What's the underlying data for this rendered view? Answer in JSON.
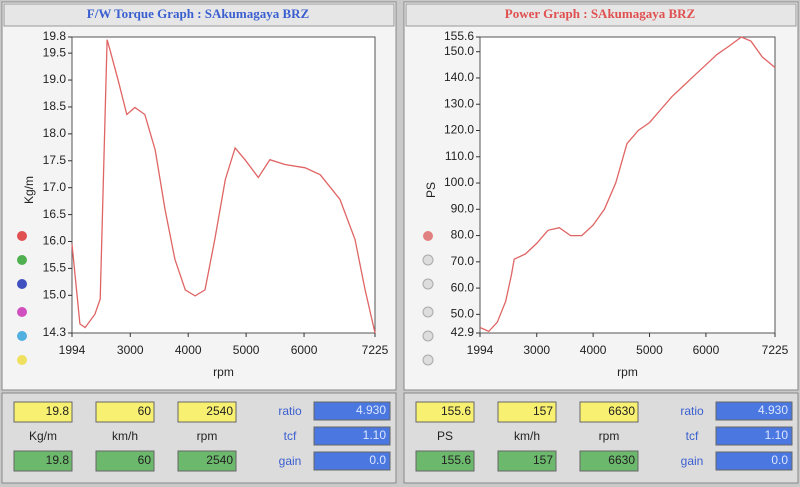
{
  "chart_data": [
    {
      "type": "line",
      "title": "F/W Torque Graph : SAkumagaya BRZ",
      "title_color": "#3a5fd0",
      "xlabel": "rpm",
      "ylabel": "Kg/m",
      "color": "#e06464",
      "x": [
        1994,
        2130,
        2220,
        2390,
        2480,
        2600,
        2650,
        2790,
        2940,
        3080,
        3250,
        3430,
        3600,
        3770,
        3950,
        4120,
        4290,
        4460,
        4640,
        4810,
        4980,
        5210,
        5410,
        5670,
        6020,
        6280,
        6620,
        6880,
        7050,
        7225
      ],
      "values": [
        15.95,
        14.47,
        14.4,
        14.65,
        14.93,
        19.75,
        19.56,
        19.0,
        18.36,
        18.49,
        18.36,
        17.7,
        16.6,
        15.67,
        15.1,
        14.99,
        15.1,
        16.04,
        17.15,
        17.74,
        17.52,
        17.19,
        17.52,
        17.43,
        17.37,
        17.24,
        16.78,
        16.04,
        15.12,
        14.3
      ],
      "xlim": [
        1994,
        7225
      ],
      "xticks": [
        1994,
        3000,
        4000,
        5000,
        6000,
        7225
      ],
      "ylim": [
        14.3,
        19.8
      ],
      "yticks": [
        14.3,
        {
          "value": 15,
          "label": "15.0"
        },
        15.5,
        {
          "value": 16,
          "label": "16.0"
        },
        16.5,
        {
          "value": 17,
          "label": "17.0"
        },
        17.5,
        {
          "value": 18,
          "label": "18.0"
        },
        18.5,
        {
          "value": 19,
          "label": "19.0"
        },
        19.5,
        19.8
      ]
    },
    {
      "type": "line",
      "title": "Power Graph : SAkumagaya BRZ",
      "title_color": "#e05050",
      "xlabel": "rpm",
      "ylabel": "PS",
      "color": "#e06464",
      "x": [
        1994,
        2150,
        2300,
        2450,
        2550,
        2600,
        2800,
        3000,
        3200,
        3400,
        3600,
        3800,
        4000,
        4200,
        4400,
        4600,
        4800,
        5000,
        5200,
        5400,
        5600,
        5800,
        6000,
        6200,
        6400,
        6630,
        6800,
        7000,
        7225
      ],
      "values": [
        45,
        43.5,
        47,
        55,
        65,
        71,
        73,
        77,
        82,
        83,
        80,
        80,
        84,
        90,
        100,
        115,
        120,
        123,
        128,
        133,
        137,
        141,
        145,
        149,
        152,
        155.6,
        154,
        148,
        144
      ],
      "xlim": [
        1994,
        7225
      ],
      "xticks": [
        1994,
        3000,
        4000,
        5000,
        6000,
        7225
      ],
      "ylim": [
        42.9,
        155.6
      ],
      "yticks": [
        42.9,
        {
          "value": 50,
          "label": "50.0"
        },
        {
          "value": 60,
          "label": "60.0"
        },
        {
          "value": 70,
          "label": "70.0"
        },
        {
          "value": 80,
          "label": "80.0"
        },
        {
          "value": 90,
          "label": "90.0"
        },
        {
          "value": 100,
          "label": "100.0"
        },
        {
          "value": 110,
          "label": "110.0"
        },
        {
          "value": 120,
          "label": "120.0"
        },
        {
          "value": 130,
          "label": "130.0"
        },
        {
          "value": 140,
          "label": "140.0"
        },
        {
          "value": 150,
          "label": "150.0"
        },
        155.6
      ]
    }
  ],
  "readouts": [
    {
      "top": [
        "19.8",
        "60",
        "2540"
      ],
      "units": [
        "Kg/m",
        "km/h",
        "rpm"
      ],
      "bottom": [
        "19.8",
        "60",
        "2540"
      ],
      "side": [
        [
          "ratio",
          "4.930"
        ],
        [
          "tcf",
          "1.10"
        ],
        [
          "gain",
          "0.0"
        ]
      ]
    },
    {
      "top": [
        "155.6",
        "157",
        "6630"
      ],
      "units": [
        "PS",
        "km/h",
        "rpm"
      ],
      "bottom": [
        "155.6",
        "157",
        "6630"
      ],
      "side": [
        [
          "ratio",
          "4.930"
        ],
        [
          "tcf",
          "1.10"
        ],
        [
          "gain",
          "0.0"
        ]
      ]
    }
  ]
}
